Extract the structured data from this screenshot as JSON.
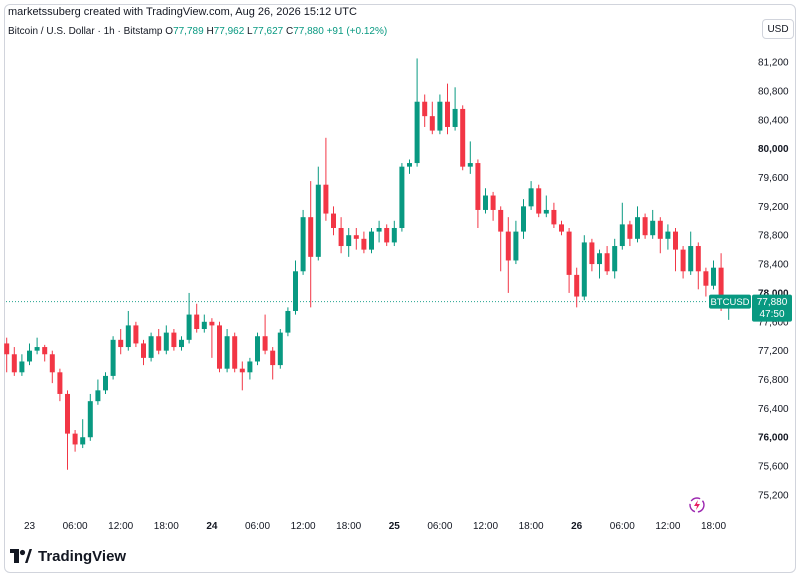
{
  "header": {
    "creator_line": "marketssuberg created with TradingView.com, Aug 26, 2026 15:12 UTC"
  },
  "legend": {
    "symbol": "Bitcoin / U.S. Dollar · 1h · Bitstamp",
    "o_label": "O",
    "o_value": "77,789",
    "h_label": "H",
    "h_value": "77,962",
    "l_label": "L",
    "l_value": "77,627",
    "c_label": "C",
    "c_value": "77,880",
    "change": "+91 (+0.12%)"
  },
  "currency_button": "USD",
  "price_tag": {
    "symbol": "BTCUSD",
    "price": "77,880",
    "countdown": "47:50"
  },
  "brand": {
    "name": "TradingView",
    "logo_icon": "tradingview-logo-icon"
  },
  "colors": {
    "up": "#089981",
    "down": "#f23645",
    "text": "#131722",
    "grid": "#f0f3fa"
  },
  "chart_data": {
    "type": "candlestick",
    "interval": "1h",
    "ylim": [
      74950,
      81450
    ],
    "y_ticks": [
      {
        "value": 75200,
        "label": "75,200",
        "bold": false
      },
      {
        "value": 75600,
        "label": "75,600",
        "bold": false
      },
      {
        "value": 76000,
        "label": "76,000",
        "bold": true
      },
      {
        "value": 76400,
        "label": "76,400",
        "bold": false
      },
      {
        "value": 76800,
        "label": "76,800",
        "bold": false
      },
      {
        "value": 77200,
        "label": "77,200",
        "bold": false
      },
      {
        "value": 77600,
        "label": "77,600",
        "bold": false
      },
      {
        "value": 78000,
        "label": "78,000",
        "bold": true
      },
      {
        "value": 78400,
        "label": "78,400",
        "bold": false
      },
      {
        "value": 78800,
        "label": "78,800",
        "bold": false
      },
      {
        "value": 79200,
        "label": "79,200",
        "bold": false
      },
      {
        "value": 79600,
        "label": "79,600",
        "bold": false
      },
      {
        "value": 80000,
        "label": "80,000",
        "bold": true
      },
      {
        "value": 80400,
        "label": "80,400",
        "bold": false
      },
      {
        "value": 80800,
        "label": "80,800",
        "bold": false
      },
      {
        "value": 81200,
        "label": "81,200",
        "bold": false
      }
    ],
    "x_ticks": [
      {
        "index": 0,
        "label": "23",
        "bold": false
      },
      {
        "index": 6,
        "label": "06:00",
        "bold": false
      },
      {
        "index": 12,
        "label": "12:00",
        "bold": false
      },
      {
        "index": 18,
        "label": "18:00",
        "bold": false
      },
      {
        "index": 24,
        "label": "24",
        "bold": true
      },
      {
        "index": 30,
        "label": "06:00",
        "bold": false
      },
      {
        "index": 36,
        "label": "12:00",
        "bold": false
      },
      {
        "index": 42,
        "label": "18:00",
        "bold": false
      },
      {
        "index": 48,
        "label": "25",
        "bold": true
      },
      {
        "index": 54,
        "label": "06:00",
        "bold": false
      },
      {
        "index": 60,
        "label": "12:00",
        "bold": false
      },
      {
        "index": 66,
        "label": "18:00",
        "bold": false
      },
      {
        "index": 72,
        "label": "26",
        "bold": true
      },
      {
        "index": 78,
        "label": "06:00",
        "bold": false
      },
      {
        "index": 84,
        "label": "12:00",
        "bold": false
      },
      {
        "index": 90,
        "label": "18:00",
        "bold": false
      }
    ],
    "first_index": -3,
    "last_price": 77880,
    "candles": [
      [
        77300,
        77150,
        77380,
        76900
      ],
      [
        77150,
        76900,
        77250,
        76850
      ],
      [
        76900,
        77050,
        77150,
        76850
      ],
      [
        77050,
        77200,
        77300,
        77000
      ],
      [
        77200,
        77250,
        77380,
        77150
      ],
      [
        77250,
        77150,
        77280,
        77050
      ],
      [
        77150,
        76900,
        77200,
        76750
      ],
      [
        76900,
        76600,
        76950,
        76500
      ],
      [
        76600,
        76050,
        76650,
        75550
      ],
      [
        76050,
        75900,
        76100,
        75800
      ],
      [
        75900,
        76000,
        76250,
        75850
      ],
      [
        76000,
        76500,
        76600,
        75950
      ],
      [
        76500,
        76650,
        76800,
        76450
      ],
      [
        76650,
        76850,
        76900,
        76600
      ],
      [
        76850,
        77350,
        77400,
        76800
      ],
      [
        77350,
        77250,
        77500,
        77150
      ],
      [
        77250,
        77550,
        77750,
        77200
      ],
      [
        77550,
        77300,
        77600,
        77250
      ],
      [
        77300,
        77100,
        77350,
        77000
      ],
      [
        77100,
        77400,
        77450,
        77050
      ],
      [
        77400,
        77200,
        77500,
        77150
      ],
      [
        77200,
        77450,
        77550,
        77150
      ],
      [
        77450,
        77250,
        77500,
        77200
      ],
      [
        77250,
        77350,
        77400,
        77200
      ],
      [
        77350,
        77700,
        78000,
        77300
      ],
      [
        77700,
        77500,
        77850,
        77450
      ],
      [
        77500,
        77600,
        77700,
        77450
      ],
      [
        77600,
        77550,
        77650,
        77100
      ],
      [
        77550,
        76950,
        77600,
        76900
      ],
      [
        76950,
        77400,
        77500,
        76900
      ],
      [
        77400,
        76950,
        77450,
        76900
      ],
      [
        76950,
        76900,
        77050,
        76650
      ],
      [
        76900,
        77050,
        77100,
        76800
      ],
      [
        77050,
        77400,
        77450,
        77000
      ],
      [
        77400,
        77200,
        77700,
        77150
      ],
      [
        77200,
        77000,
        77250,
        76800
      ],
      [
        77000,
        77450,
        77500,
        76950
      ],
      [
        77450,
        77750,
        77800,
        77400
      ],
      [
        77750,
        78300,
        78450,
        77700
      ],
      [
        78300,
        79050,
        79150,
        78250
      ],
      [
        79050,
        78500,
        79550,
        77800
      ],
      [
        78500,
        79500,
        79750,
        78450
      ],
      [
        79500,
        79100,
        80150,
        79000
      ],
      [
        79100,
        78900,
        79200,
        78800
      ],
      [
        78900,
        78650,
        79050,
        78550
      ],
      [
        78650,
        78800,
        78900,
        78500
      ],
      [
        78800,
        78750,
        78900,
        78600
      ],
      [
        78750,
        78600,
        78850,
        78550
      ],
      [
        78600,
        78850,
        78900,
        78550
      ],
      [
        78850,
        78900,
        79000,
        78700
      ],
      [
        78900,
        78700,
        78950,
        78650
      ],
      [
        78700,
        78900,
        79000,
        78650
      ],
      [
        78900,
        79750,
        79800,
        78850
      ],
      [
        79750,
        79800,
        79850,
        79650
      ],
      [
        79800,
        80650,
        81250,
        79750
      ],
      [
        80650,
        80450,
        80750,
        80300
      ],
      [
        80450,
        80250,
        80650,
        80200
      ],
      [
        80250,
        80650,
        80750,
        80200
      ],
      [
        80650,
        80300,
        80900,
        80200
      ],
      [
        80300,
        80550,
        80850,
        80250
      ],
      [
        80550,
        79750,
        80600,
        79700
      ],
      [
        79750,
        79800,
        80100,
        79650
      ],
      [
        79800,
        79150,
        79850,
        78900
      ],
      [
        79150,
        79350,
        79450,
        79100
      ],
      [
        79350,
        79150,
        79400,
        79000
      ],
      [
        79150,
        78850,
        79200,
        78300
      ],
      [
        78850,
        78450,
        79050,
        78000
      ],
      [
        78450,
        78850,
        79000,
        78400
      ],
      [
        78850,
        79200,
        79300,
        78750
      ],
      [
        79200,
        79450,
        79550,
        79150
      ],
      [
        79450,
        79100,
        79500,
        79050
      ],
      [
        79100,
        79150,
        79350,
        79050
      ],
      [
        79150,
        78950,
        79250,
        78900
      ],
      [
        78950,
        78850,
        79000,
        78800
      ],
      [
        78850,
        78250,
        78900,
        78000
      ],
      [
        78250,
        77950,
        78350,
        77800
      ],
      [
        77950,
        78700,
        78800,
        77900
      ],
      [
        78700,
        78400,
        78750,
        78300
      ],
      [
        78400,
        78550,
        78600,
        78200
      ],
      [
        78550,
        78300,
        78650,
        78250
      ],
      [
        78300,
        78650,
        78750,
        78200
      ],
      [
        78650,
        78950,
        79250,
        78600
      ],
      [
        78950,
        78750,
        79000,
        78650
      ],
      [
        78750,
        79050,
        79200,
        78700
      ],
      [
        79050,
        78800,
        79100,
        78750
      ],
      [
        78800,
        79000,
        79150,
        78750
      ],
      [
        79000,
        78750,
        79050,
        78550
      ],
      [
        78750,
        78850,
        78950,
        78600
      ],
      [
        78850,
        78600,
        78900,
        78300
      ],
      [
        78600,
        78300,
        78650,
        78200
      ],
      [
        78300,
        78650,
        78850,
        78250
      ],
      [
        78650,
        78300,
        78700,
        78050
      ],
      [
        78300,
        78100,
        78350,
        77950
      ],
      [
        78100,
        78350,
        78450,
        78050
      ],
      [
        78350,
        77790,
        78550,
        77750
      ],
      [
        77789,
        77880,
        77962,
        77627
      ]
    ]
  }
}
